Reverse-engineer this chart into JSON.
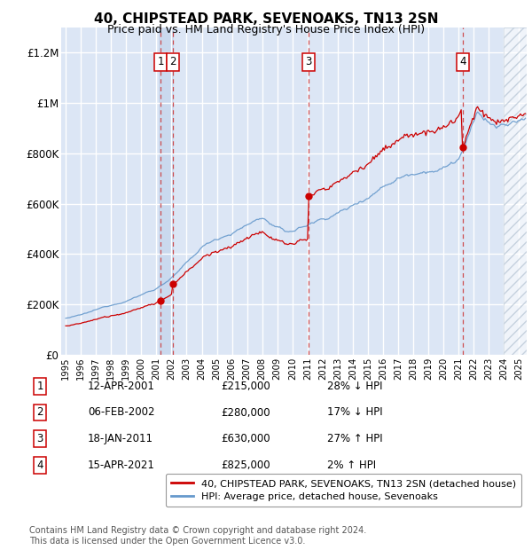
{
  "title": "40, CHIPSTEAD PARK, SEVENOAKS, TN13 2SN",
  "subtitle": "Price paid vs. HM Land Registry's House Price Index (HPI)",
  "ylabel_ticks": [
    "£0",
    "£200K",
    "£400K",
    "£600K",
    "£800K",
    "£1M",
    "£1.2M"
  ],
  "ytick_values": [
    0,
    200000,
    400000,
    600000,
    800000,
    1000000,
    1200000
  ],
  "ylim": [
    0,
    1300000
  ],
  "xlim_start": 1994.7,
  "xlim_end": 2025.5,
  "sale_dates": [
    2001.28,
    2002.09,
    2011.05,
    2021.29
  ],
  "sale_prices": [
    215000,
    280000,
    630000,
    825000
  ],
  "sale_labels": [
    "1",
    "2",
    "3",
    "4"
  ],
  "legend_label_red": "40, CHIPSTEAD PARK, SEVENOAKS, TN13 2SN (detached house)",
  "legend_label_blue": "HPI: Average price, detached house, Sevenoaks",
  "table_data": [
    [
      "1",
      "12-APR-2001",
      "£215,000",
      "28% ↓ HPI"
    ],
    [
      "2",
      "06-FEB-2002",
      "£280,000",
      "17% ↓ HPI"
    ],
    [
      "3",
      "18-JAN-2011",
      "£630,000",
      "27% ↑ HPI"
    ],
    [
      "4",
      "15-APR-2021",
      "£825,000",
      "2% ↑ HPI"
    ]
  ],
  "footer": "Contains HM Land Registry data © Crown copyright and database right 2024.\nThis data is licensed under the Open Government Licence v3.0.",
  "bg_color": "#dce6f5",
  "red_color": "#cc0000",
  "blue_color": "#6699cc",
  "grid_color": "#ffffff",
  "vline_color": "#cc3333",
  "vspan_color": "#c8d8ee"
}
